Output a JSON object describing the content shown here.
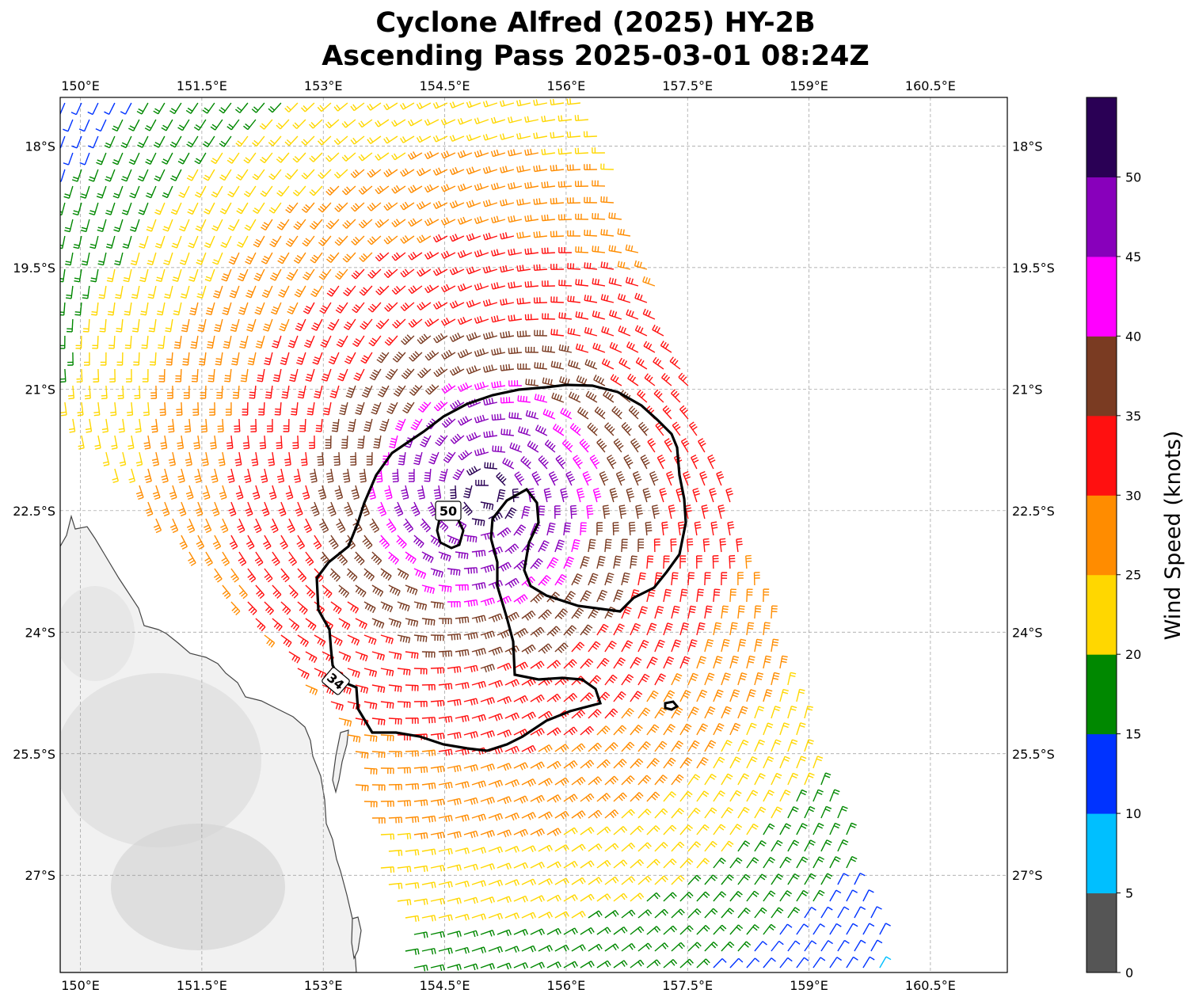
{
  "title_line1": "Cyclone Alfred (2025) HY-2B",
  "title_line2": "Ascending Pass 2025-03-01 08:24Z",
  "lon_labels": [
    "150°E",
    "151.5°E",
    "153°E",
    "154.5°E",
    "156°E",
    "157.5°E",
    "159°E",
    "160.5°E"
  ],
  "lat_labels": [
    "18°S",
    "19.5°S",
    "21°S",
    "22.5°S",
    "24°S",
    "25.5°S",
    "27°S"
  ],
  "map_extent": {
    "lon_min": 149.75,
    "lon_max": 161.45,
    "lat_min": -28.2,
    "lat_max": -17.4
  },
  "colorbar": {
    "label": "Wind Speed (knots)",
    "ticks": [
      "0",
      "5",
      "10",
      "15",
      "20",
      "25",
      "30",
      "35",
      "40",
      "45",
      "50"
    ],
    "colors": [
      "#555555",
      "#00bfff",
      "#0033ff",
      "#008800",
      "#ffd700",
      "#ff8c00",
      "#ff1010",
      "#7a3b22",
      "#ff00ff",
      "#8800bb",
      "#2a0055"
    ]
  },
  "contour_labels": {
    "c34": "34",
    "c50": "50"
  },
  "chart_data": {
    "type": "wind_barbs",
    "storm_center": {
      "lon": 155.0,
      "lat": -22.3
    },
    "wind_speed_units": "knots",
    "contours": [
      34,
      50
    ]
  }
}
